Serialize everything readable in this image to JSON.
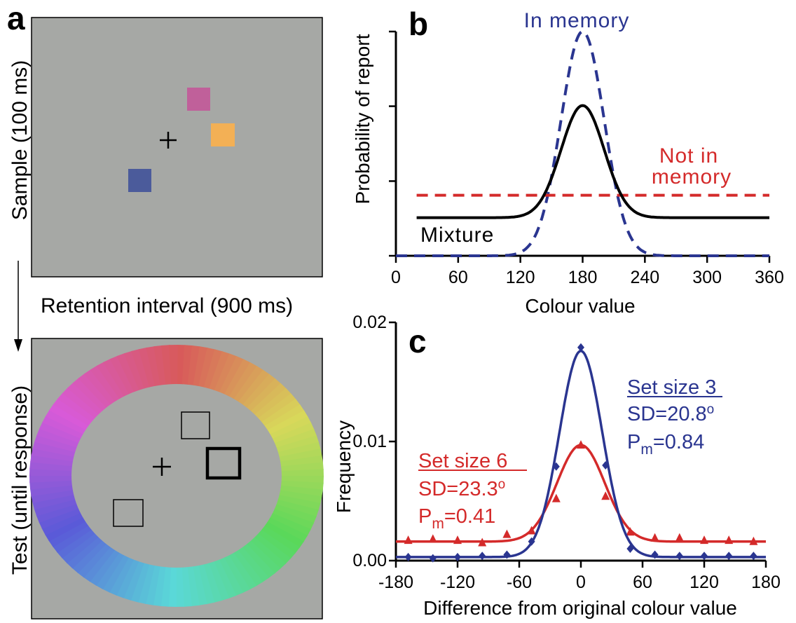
{
  "panel_a": {
    "letter": "a",
    "sample_label": "Sample (100 ms)",
    "retention_label": "Retention interval  (900 ms)",
    "test_label": "Test (until response)",
    "colors": {
      "background": "#a6a8a5",
      "pink_square": "#c0609a",
      "orange_square": "#f3b055",
      "blue_square": "#4b5b9b"
    }
  },
  "chart_data": [
    {
      "panel": "b",
      "type": "line",
      "letter": "b",
      "xlabel": "Colour value",
      "ylabel": "Probability of report",
      "xlim": [
        0,
        360
      ],
      "xticks": [
        "0",
        "60",
        "120",
        "180",
        "240",
        "300",
        "360"
      ],
      "ylim": [
        0,
        1
      ],
      "grid": false,
      "series": [
        {
          "name": "In memory",
          "color": "#2a3590",
          "style": "dashed",
          "shape": "gaussian",
          "center": 180,
          "sd": 20.8,
          "peak": 1.0,
          "baseline": 0.0
        },
        {
          "name": "Not in memory",
          "color": "#d42a2a",
          "style": "dashed",
          "shape": "uniform",
          "level": 0.27
        },
        {
          "name": "Mixture",
          "color": "#000000",
          "style": "solid",
          "shape": "gaussian",
          "center": 180,
          "sd": 20.8,
          "peak": 0.67,
          "baseline": 0.17
        }
      ],
      "annotations": {
        "in_memory": "In memory",
        "not_in_1": "Not in",
        "not_in_2": "memory",
        "mixture": "Mixture"
      }
    },
    {
      "panel": "c",
      "type": "scatter",
      "letter": "c",
      "xlabel": "Difference from original colour value",
      "ylabel": "Frequency",
      "xlim": [
        -180,
        180
      ],
      "xticks": [
        "-180",
        "-120",
        "-60",
        "0",
        "60",
        "120",
        "180"
      ],
      "ylim": [
        0,
        0.02
      ],
      "yticks": [
        "0.00",
        "0.01",
        "0.02"
      ],
      "grid": false,
      "series": [
        {
          "name": "Set size 3",
          "color": "#2a3590",
          "marker": "diamond",
          "sd_text": "SD=20.8",
          "pm_text": "P",
          "pm_sub": "m",
          "pm_val": "=0.84",
          "fit": {
            "center": 0,
            "sd": 20.8,
            "peak": 0.0173,
            "baseline": 0.0003
          },
          "x": [
            -168,
            -144,
            -120,
            -96,
            -72,
            -48,
            -24,
            0,
            24,
            48,
            72,
            96,
            120,
            144,
            168
          ],
          "y": [
            0.0003,
            0.0002,
            0.0003,
            0.0004,
            0.0005,
            0.0016,
            0.0079,
            0.0179,
            0.008,
            0.001,
            0.0005,
            0.0004,
            0.0004,
            0.0004,
            0.0004
          ]
        },
        {
          "name": "Set size 6",
          "color": "#d42a2a",
          "marker": "triangle",
          "sd_text": "SD=23.3",
          "pm_text": "P",
          "pm_sub": "m",
          "pm_val": "=0.41",
          "fit": {
            "center": 0,
            "sd": 23.3,
            "peak": 0.0081,
            "baseline": 0.0016
          },
          "x": [
            -168,
            -144,
            -120,
            -96,
            -72,
            -48,
            -24,
            0,
            24,
            48,
            72,
            96,
            120,
            144,
            168
          ],
          "y": [
            0.0017,
            0.0018,
            0.0017,
            0.0015,
            0.0022,
            0.0025,
            0.0052,
            0.0097,
            0.0054,
            0.0024,
            0.0019,
            0.0019,
            0.0017,
            0.0017,
            0.0016
          ]
        }
      ]
    }
  ]
}
